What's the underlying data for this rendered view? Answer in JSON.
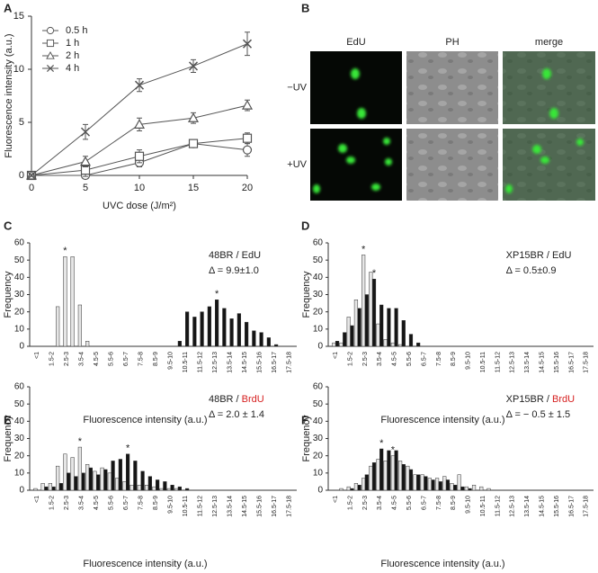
{
  "chart_data": [
    {
      "type": "line",
      "panel_label": "A",
      "x_label": "UVC dose (J/m²)",
      "y_label": "Fluorescence intensity (a.u.)",
      "x": [
        0,
        5,
        10,
        15,
        20
      ],
      "xlim": [
        0,
        20
      ],
      "xticks": [
        0,
        5,
        10,
        15,
        20
      ],
      "ylim": [
        0,
        15
      ],
      "yticks": [
        0,
        5,
        10,
        15
      ],
      "legend": "upper-left",
      "series": [
        {
          "name": "0.5 h",
          "color": "#555555",
          "marker": "circle",
          "values": [
            0,
            0,
            1.2,
            3.0,
            2.4
          ],
          "errors": [
            0.1,
            0.3,
            0.4,
            0.3,
            0.6
          ]
        },
        {
          "name": "1 h",
          "color": "#555555",
          "marker": "square",
          "values": [
            0,
            0.5,
            1.8,
            3.0,
            3.5
          ],
          "errors": [
            0.1,
            0.6,
            0.6,
            0.3,
            0.5
          ]
        },
        {
          "name": "2 h",
          "color": "#555555",
          "marker": "triangle",
          "values": [
            0,
            1.3,
            4.8,
            5.4,
            6.6
          ],
          "errors": [
            0.1,
            0.5,
            0.6,
            0.5,
            0.5
          ]
        },
        {
          "name": "4 h",
          "color": "#555555",
          "marker": "x",
          "values": [
            0,
            4.1,
            8.5,
            10.3,
            12.4
          ],
          "errors": [
            0.1,
            0.7,
            0.6,
            0.6,
            1.1
          ]
        }
      ]
    },
    {
      "type": "image-grid",
      "panel_label": "B",
      "columns": [
        "EdU",
        "PH",
        "merge"
      ],
      "rows": [
        "−UV",
        "+UV"
      ]
    },
    {
      "type": "histogram",
      "panel_label": "C",
      "x_label": "Fluorescence intensity (a.u.)",
      "y_label": "Frequency",
      "title_parts": [
        {
          "text": "48BR / EdU",
          "color": "#222222"
        }
      ],
      "subtitle": "Δ = 9.9±1.0",
      "annotations": [
        "*",
        "*"
      ],
      "categories": [
        "<1",
        null,
        "1.5-2",
        null,
        "2.5-3",
        null,
        "3.5-4",
        null,
        "4.5-5",
        null,
        "5.5-6",
        null,
        "6.5-7",
        null,
        "7.5-8",
        null,
        "8.5-9",
        null,
        "9.5-10",
        null,
        "10.5-11",
        null,
        "11.5-12",
        null,
        "12.5-13",
        null,
        "13.5-14",
        null,
        "14.5-15",
        null,
        "15.5-16",
        null,
        "16.5-17",
        null,
        "17.5-18"
      ],
      "ylim": [
        0,
        60
      ],
      "yticks": [
        0,
        10,
        20,
        30,
        40,
        50,
        60
      ],
      "series": [
        {
          "color": "#e6e6e6",
          "values": [
            0,
            0,
            0,
            23,
            52,
            52,
            24,
            3,
            0,
            0,
            0,
            0,
            0,
            0,
            0,
            0,
            0,
            0,
            0,
            0,
            0,
            0,
            0,
            0,
            0,
            0,
            0,
            0,
            0,
            0,
            0,
            0,
            0,
            0,
            0
          ]
        },
        {
          "color": "#151515",
          "values": [
            0,
            0,
            0,
            0,
            0,
            0,
            0,
            0,
            0,
            0,
            0,
            0,
            0,
            0,
            0,
            0,
            0,
            0,
            0,
            3,
            20,
            17,
            20,
            23,
            27,
            22,
            16,
            19,
            14,
            9,
            8,
            5,
            1,
            0,
            0
          ]
        }
      ]
    },
    {
      "type": "histogram",
      "panel_label": "D",
      "x_label": "Fluorescence intensity (a.u.)",
      "y_label": "Frequency",
      "title_parts": [
        {
          "text": "XP15BR / EdU",
          "color": "#222222"
        }
      ],
      "subtitle": "Δ = 0.5±0.9",
      "annotations": [
        "*",
        "*"
      ],
      "categories": [
        "<1",
        null,
        "1.5-2",
        null,
        "2.5-3",
        null,
        "3.5-4",
        null,
        "4.5-5",
        null,
        "5.5-6",
        null,
        "6.5-7",
        null,
        "7.5-8",
        null,
        "8.5-9",
        null,
        "9.5-10",
        null,
        "10.5-11",
        null,
        "11.5-12",
        null,
        "12.5-13",
        null,
        "13.5-14",
        null,
        "14.5-15",
        null,
        "15.5-16",
        null,
        "16.5-17",
        null,
        "17.5-18"
      ],
      "ylim": [
        0,
        60
      ],
      "yticks": [
        0,
        10,
        20,
        30,
        40,
        50,
        60
      ],
      "series": [
        {
          "color": "#e6e6e6",
          "values": [
            2,
            2,
            17,
            27,
            53,
            43,
            13,
            4,
            2,
            1,
            0,
            0,
            0,
            0,
            0,
            0,
            0,
            0,
            0,
            0,
            0,
            0,
            0,
            0,
            0,
            0,
            0,
            0,
            0,
            0,
            0,
            0,
            0,
            0,
            0
          ]
        },
        {
          "color": "#151515",
          "values": [
            3,
            8,
            12,
            22,
            30,
            39,
            24,
            22,
            22,
            15,
            7,
            2,
            0,
            0,
            0,
            0,
            0,
            0,
            0,
            0,
            0,
            0,
            0,
            0,
            0,
            0,
            0,
            0,
            0,
            0,
            0,
            0,
            0,
            0,
            0
          ]
        }
      ]
    },
    {
      "type": "histogram",
      "panel_label": "E",
      "x_label": "Fluorescence intensity (a.u.)",
      "y_label": "Frequency",
      "title_parts": [
        {
          "text": "48BR / ",
          "color": "#222222"
        },
        {
          "text": "BrdU",
          "color": "#d62020"
        }
      ],
      "subtitle": "Δ = 2.0 ± 1.4",
      "annotations": [
        "*",
        "*"
      ],
      "categories": [
        "<1",
        null,
        "1.5-2",
        null,
        "2.5-3",
        null,
        "3.5-4",
        null,
        "4.5-5",
        null,
        "5.5-6",
        null,
        "6.5-7",
        null,
        "7.5-8",
        null,
        "8.5-9",
        null,
        "9.5-10",
        null,
        "10.5-11",
        null,
        "11.5-12",
        null,
        "12.5-13",
        null,
        "13.5-14",
        null,
        "14.5-15",
        null,
        "15.5-16",
        null,
        "16.5-17",
        null,
        "17.5-18"
      ],
      "ylim": [
        0,
        60
      ],
      "yticks": [
        0,
        10,
        20,
        30,
        40,
        50,
        60
      ],
      "series": [
        {
          "color": "#e6e6e6",
          "values": [
            1,
            4,
            4,
            14,
            21,
            19,
            25,
            15,
            11,
            13,
            10,
            7,
            5,
            3,
            3,
            3,
            2,
            1,
            1,
            1,
            0,
            0,
            0,
            0,
            0,
            0,
            0,
            0,
            0,
            0,
            0,
            0,
            0,
            0,
            0
          ]
        },
        {
          "color": "#151515",
          "values": [
            0,
            2,
            2,
            4,
            10,
            8,
            10,
            13,
            9,
            12,
            17,
            18,
            21,
            17,
            11,
            8,
            6,
            5,
            3,
            2,
            1,
            0,
            0,
            0,
            0,
            0,
            0,
            0,
            0,
            0,
            0,
            0,
            0,
            0,
            0
          ]
        }
      ]
    },
    {
      "type": "histogram",
      "panel_label": "F",
      "x_label": "Fluorescence intensity (a.u.)",
      "y_label": "Frequency",
      "title_parts": [
        {
          "text": "XP15BR / ",
          "color": "#222222"
        },
        {
          "text": "BrdU",
          "color": "#d62020"
        }
      ],
      "subtitle": "Δ = − 0.5 ± 1.5",
      "annotations": [
        "*",
        "*"
      ],
      "categories": [
        "<1",
        null,
        "1.5-2",
        null,
        "2.5-3",
        null,
        "3.5-4",
        null,
        "4.5-5",
        null,
        "5.5-6",
        null,
        "6.5-7",
        null,
        "7.5-8",
        null,
        "8.5-9",
        null,
        "9.5-10",
        null,
        "10.5-11",
        null,
        "11.5-12",
        null,
        "12.5-13",
        null,
        "13.5-14",
        null,
        "14.5-15",
        null,
        "15.5-16",
        null,
        "16.5-17",
        null,
        "17.5-18"
      ],
      "ylim": [
        0,
        60
      ],
      "yticks": [
        0,
        10,
        20,
        30,
        40,
        50,
        60
      ],
      "series": [
        {
          "color": "#e6e6e6",
          "values": [
            0,
            1,
            2,
            4,
            7,
            14,
            18,
            17,
            20,
            17,
            14,
            9,
            9,
            7,
            7,
            8,
            4,
            9,
            2,
            3,
            2,
            1,
            0,
            0,
            0,
            0,
            0,
            0,
            0,
            0,
            0,
            0,
            0,
            0,
            0
          ]
        },
        {
          "color": "#151515",
          "values": [
            0,
            0,
            1,
            3,
            9,
            16,
            24,
            23,
            23,
            15,
            12,
            9,
            8,
            6,
            5,
            6,
            3,
            2,
            1,
            0,
            0,
            0,
            0,
            0,
            0,
            0,
            0,
            0,
            0,
            0,
            0,
            0,
            0,
            0,
            0
          ]
        }
      ]
    }
  ]
}
